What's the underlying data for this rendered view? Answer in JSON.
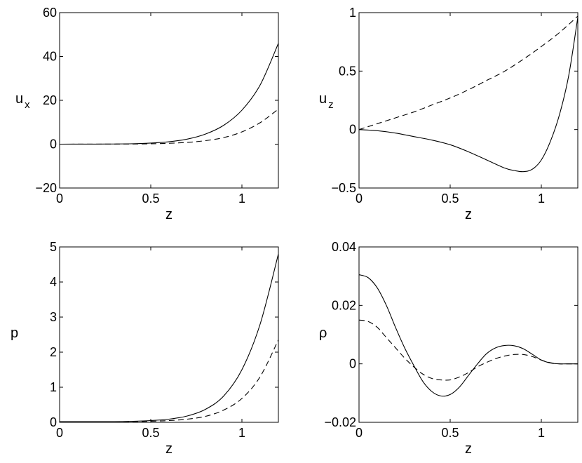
{
  "chart_data": [
    {
      "id": "ux",
      "type": "line",
      "xlabel": "z",
      "ylabel": {
        "main": "u",
        "sub": "x"
      },
      "xlim": [
        0,
        1.2
      ],
      "ylim": [
        -20,
        60
      ],
      "xticks": [
        0,
        0.5,
        1
      ],
      "xtick_labels": [
        "0",
        "0.5",
        "1"
      ],
      "yticks": [
        -20,
        0,
        20,
        40,
        60
      ],
      "ytick_labels": [
        "−20",
        "0",
        "20",
        "40",
        "60"
      ],
      "series": [
        {
          "style": "solid",
          "x": [
            0,
            0.1,
            0.2,
            0.3,
            0.4,
            0.5,
            0.6,
            0.7,
            0.8,
            0.9,
            1.0,
            1.1,
            1.2
          ],
          "y": [
            0,
            0.01,
            0.03,
            0.08,
            0.2,
            0.5,
            1.1,
            2.3,
            4.6,
            8.6,
            15.5,
            27,
            46
          ]
        },
        {
          "style": "dashed",
          "x": [
            0,
            0.1,
            0.2,
            0.3,
            0.4,
            0.5,
            0.6,
            0.7,
            0.8,
            0.9,
            1.0,
            1.1,
            1.2
          ],
          "y": [
            0,
            0.005,
            0.01,
            0.03,
            0.07,
            0.17,
            0.4,
            0.8,
            1.6,
            3.0,
            5.6,
            9.8,
            16
          ]
        }
      ]
    },
    {
      "id": "uz",
      "type": "line",
      "xlabel": "z",
      "ylabel": {
        "main": "u",
        "sub": "z"
      },
      "xlim": [
        0,
        1.2
      ],
      "ylim": [
        -0.5,
        1
      ],
      "xticks": [
        0,
        0.5,
        1
      ],
      "xtick_labels": [
        "0",
        "0.5",
        "1"
      ],
      "yticks": [
        -0.5,
        0,
        0.5,
        1
      ],
      "ytick_labels": [
        "−0.5",
        "0",
        "0.5",
        "1"
      ],
      "series": [
        {
          "style": "solid",
          "x": [
            0,
            0.1,
            0.2,
            0.3,
            0.4,
            0.5,
            0.6,
            0.7,
            0.8,
            0.85,
            0.9,
            0.95,
            1.0,
            1.05,
            1.1,
            1.15,
            1.2
          ],
          "y": [
            0,
            -0.01,
            -0.03,
            -0.06,
            -0.09,
            -0.13,
            -0.19,
            -0.26,
            -0.33,
            -0.35,
            -0.36,
            -0.34,
            -0.26,
            -0.1,
            0.13,
            0.46,
            0.96
          ]
        },
        {
          "style": "dashed",
          "x": [
            0,
            0.1,
            0.2,
            0.3,
            0.4,
            0.5,
            0.6,
            0.7,
            0.8,
            0.9,
            1.0,
            1.1,
            1.2
          ],
          "y": [
            0,
            0.05,
            0.1,
            0.15,
            0.21,
            0.27,
            0.34,
            0.42,
            0.5,
            0.6,
            0.71,
            0.83,
            0.97
          ]
        }
      ]
    },
    {
      "id": "p",
      "type": "line",
      "xlabel": "z",
      "ylabel": {
        "main": "p",
        "sub": ""
      },
      "xlim": [
        0,
        1.2
      ],
      "ylim": [
        0,
        5
      ],
      "xticks": [
        0,
        0.5,
        1
      ],
      "xtick_labels": [
        "0",
        "0.5",
        "1"
      ],
      "yticks": [
        0,
        1,
        2,
        3,
        4,
        5
      ],
      "ytick_labels": [
        "0",
        "1",
        "2",
        "3",
        "4",
        "5"
      ],
      "series": [
        {
          "style": "solid",
          "x": [
            0,
            0.1,
            0.2,
            0.3,
            0.4,
            0.5,
            0.6,
            0.7,
            0.8,
            0.9,
            1.0,
            1.1,
            1.2
          ],
          "y": [
            0.02,
            0.02,
            0.02,
            0.02,
            0.03,
            0.05,
            0.09,
            0.18,
            0.37,
            0.75,
            1.5,
            2.8,
            4.8
          ]
        },
        {
          "style": "dashed",
          "x": [
            0,
            0.1,
            0.2,
            0.3,
            0.4,
            0.5,
            0.6,
            0.7,
            0.8,
            0.9,
            1.0,
            1.1,
            1.2
          ],
          "y": [
            0.01,
            0.01,
            0.01,
            0.01,
            0.02,
            0.03,
            0.05,
            0.09,
            0.17,
            0.35,
            0.68,
            1.3,
            2.35
          ]
        }
      ]
    },
    {
      "id": "rho",
      "type": "line",
      "xlabel": "z",
      "ylabel": {
        "main": "ρ",
        "sub": ""
      },
      "xlim": [
        0,
        1.2
      ],
      "ylim": [
        -0.02,
        0.04
      ],
      "xticks": [
        0,
        0.5,
        1
      ],
      "xtick_labels": [
        "0",
        "0.5",
        "1"
      ],
      "yticks": [
        -0.02,
        0,
        0.02,
        0.04
      ],
      "ytick_labels": [
        "−0.02",
        "0",
        "0.02",
        "0.04"
      ],
      "series": [
        {
          "style": "solid",
          "x": [
            0,
            0.05,
            0.1,
            0.15,
            0.2,
            0.25,
            0.3,
            0.35,
            0.4,
            0.45,
            0.5,
            0.55,
            0.6,
            0.65,
            0.7,
            0.75,
            0.8,
            0.85,
            0.9,
            0.95,
            1.0,
            1.05,
            1.1,
            1.15,
            1.2
          ],
          "y": [
            0.0305,
            0.0295,
            0.026,
            0.02,
            0.0125,
            0.0055,
            -0.0005,
            -0.006,
            -0.0095,
            -0.011,
            -0.0105,
            -0.008,
            -0.004,
            0,
            0.0035,
            0.0055,
            0.0063,
            0.0062,
            0.0052,
            0.0033,
            0.0013,
            0.0003,
            0,
            0,
            0
          ]
        },
        {
          "style": "dashed",
          "x": [
            0,
            0.05,
            0.1,
            0.15,
            0.2,
            0.25,
            0.3,
            0.35,
            0.4,
            0.45,
            0.5,
            0.55,
            0.6,
            0.65,
            0.7,
            0.75,
            0.8,
            0.85,
            0.9,
            0.95,
            1.0,
            1.05,
            1.1,
            1.15,
            1.2
          ],
          "y": [
            0.015,
            0.0145,
            0.0125,
            0.009,
            0.0055,
            0.002,
            -0.001,
            -0.0035,
            -0.005,
            -0.0055,
            -0.0055,
            -0.0045,
            -0.003,
            -0.001,
            0.0005,
            0.0018,
            0.0027,
            0.0032,
            0.0032,
            0.0025,
            0.0013,
            0.0004,
            0,
            0,
            0
          ]
        }
      ]
    }
  ]
}
